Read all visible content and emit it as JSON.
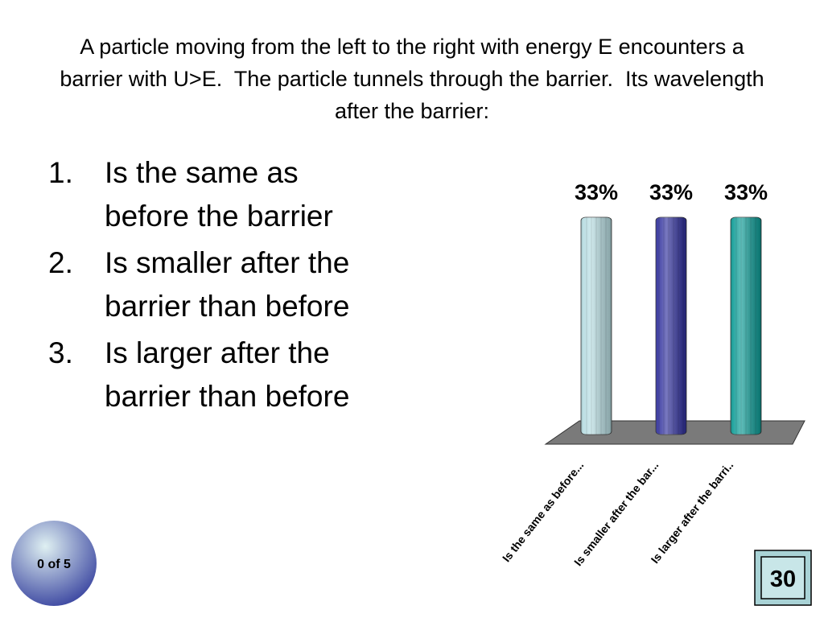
{
  "title": "A particle moving from the left to the right with energy E encounters a barrier with U>E.  The particle tunnels through the barrier.  Its wavelength after the barrier:",
  "options": [
    {
      "number": "1.",
      "text": "Is the same as before the barrier"
    },
    {
      "number": "2.",
      "text": "Is smaller after the barrier than before"
    },
    {
      "number": "3.",
      "text": "Is larger after the barrier than before"
    }
  ],
  "response_counter": "0 of 5",
  "countdown": "30",
  "chart_data": {
    "type": "bar",
    "categories": [
      "Is the same as before...",
      "Is smaller after the bar...",
      "Is larger after the barri.."
    ],
    "values": [
      33,
      33,
      33
    ],
    "value_labels": [
      "33%",
      "33%",
      "33%"
    ],
    "colors": [
      "#b5dbe0",
      "#2f2f9c",
      "#0b9b95"
    ]
  }
}
